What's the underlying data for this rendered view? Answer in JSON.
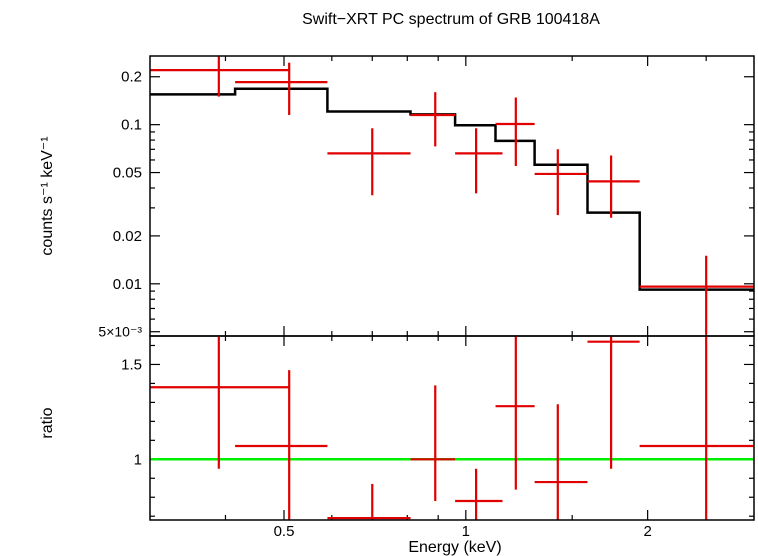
{
  "chart_data": [
    {
      "type": "scatter",
      "title": "Swift−XRT PC spectrum of GRB 100418A",
      "ylabel": "counts s⁻¹ keV⁻¹",
      "xscale": "log",
      "yscale": "log",
      "xlim": [
        0.3,
        3.0
      ],
      "ylim": [
        0.0047,
        0.27
      ],
      "yticks": [
        {
          "value": 0.2,
          "label": "0.2"
        },
        {
          "value": 0.1,
          "label": "0.1"
        },
        {
          "value": 0.05,
          "label": "0.05"
        },
        {
          "value": 0.02,
          "label": "0.02"
        },
        {
          "value": 0.01,
          "label": "0.01"
        },
        {
          "value": 0.005,
          "label": "5×10⁻³"
        }
      ],
      "data_color": "#e00000",
      "model_color": "#000000",
      "points": [
        {
          "x": 0.39,
          "xlo": 0.3,
          "xhi": 0.51,
          "y": 0.22,
          "ylo": 0.15,
          "yhi": 0.28
        },
        {
          "x": 0.51,
          "xlo": 0.415,
          "xhi": 0.59,
          "y": 0.185,
          "ylo": 0.115,
          "yhi": 0.245
        },
        {
          "x": 0.7,
          "xlo": 0.59,
          "xhi": 0.81,
          "y": 0.066,
          "ylo": 0.036,
          "yhi": 0.095
        },
        {
          "x": 0.89,
          "xlo": 0.81,
          "xhi": 0.96,
          "y": 0.115,
          "ylo": 0.073,
          "yhi": 0.16
        },
        {
          "x": 1.04,
          "xlo": 0.96,
          "xhi": 1.15,
          "y": 0.066,
          "ylo": 0.037,
          "yhi": 0.095
        },
        {
          "x": 1.21,
          "xlo": 1.12,
          "xhi": 1.3,
          "y": 0.101,
          "ylo": 0.055,
          "yhi": 0.148
        },
        {
          "x": 1.42,
          "xlo": 1.3,
          "xhi": 1.59,
          "y": 0.049,
          "ylo": 0.027,
          "yhi": 0.07
        },
        {
          "x": 1.74,
          "xlo": 1.59,
          "xhi": 1.94,
          "y": 0.044,
          "ylo": 0.026,
          "yhi": 0.064
        },
        {
          "x": 2.5,
          "xlo": 1.94,
          "xhi": 3.0,
          "y": 0.0096,
          "ylo": 0.0048,
          "yhi": 0.015
        }
      ],
      "model_steps": [
        {
          "x0": 0.3,
          "x1": 0.415,
          "y": 0.155
        },
        {
          "x0": 0.415,
          "x1": 0.59,
          "y": 0.168
        },
        {
          "x0": 0.59,
          "x1": 0.81,
          "y": 0.121
        },
        {
          "x0": 0.81,
          "x1": 0.96,
          "y": 0.116
        },
        {
          "x0": 0.96,
          "x1": 1.12,
          "y": 0.099
        },
        {
          "x0": 1.12,
          "x1": 1.3,
          "y": 0.079
        },
        {
          "x0": 1.3,
          "x1": 1.59,
          "y": 0.056
        },
        {
          "x0": 1.59,
          "x1": 1.94,
          "y": 0.028
        },
        {
          "x0": 1.94,
          "x1": 3.0,
          "y": 0.0092
        }
      ]
    },
    {
      "type": "scatter",
      "xlabel": "Energy (keV)",
      "ylabel": "ratio",
      "xscale": "log",
      "xlim": [
        0.3,
        3.0
      ],
      "ylim": [
        0.68,
        1.65
      ],
      "yticks": [
        {
          "value": 1.5,
          "label": "1.5"
        },
        {
          "value": 1.0,
          "label": "1"
        }
      ],
      "xticks": [
        {
          "value": 0.5,
          "label": "0.5"
        },
        {
          "value": 1,
          "label": "1"
        },
        {
          "value": 2,
          "label": "2"
        }
      ],
      "reference_line": {
        "y": 1.0,
        "color": "#00ee00"
      },
      "data_color": "#e00000",
      "points": [
        {
          "x": 0.39,
          "xlo": 0.3,
          "xhi": 0.51,
          "y": 1.38,
          "ylo": 0.95,
          "yhi": 1.65
        },
        {
          "x": 0.51,
          "xlo": 0.415,
          "xhi": 0.59,
          "y": 1.07,
          "ylo": 0.67,
          "yhi": 1.47
        },
        {
          "x": 0.7,
          "xlo": 0.59,
          "xhi": 0.81,
          "y": 0.69,
          "ylo": 0.67,
          "yhi": 0.87
        },
        {
          "x": 0.89,
          "xlo": 0.81,
          "xhi": 0.96,
          "y": 1.0,
          "ylo": 0.78,
          "yhi": 1.39
        },
        {
          "x": 1.04,
          "xlo": 0.96,
          "xhi": 1.15,
          "y": 0.78,
          "ylo": 0.67,
          "yhi": 0.95
        },
        {
          "x": 1.21,
          "xlo": 1.12,
          "xhi": 1.3,
          "y": 1.28,
          "ylo": 0.84,
          "yhi": 1.65
        },
        {
          "x": 1.42,
          "xlo": 1.3,
          "xhi": 1.59,
          "y": 0.88,
          "ylo": 0.67,
          "yhi": 1.29
        },
        {
          "x": 1.74,
          "xlo": 1.59,
          "xhi": 1.94,
          "y": 1.62,
          "ylo": 0.95,
          "yhi": 1.65
        },
        {
          "x": 2.5,
          "xlo": 1.94,
          "xhi": 3.0,
          "y": 1.07,
          "ylo": 0.67,
          "yhi": 1.65
        }
      ]
    }
  ]
}
